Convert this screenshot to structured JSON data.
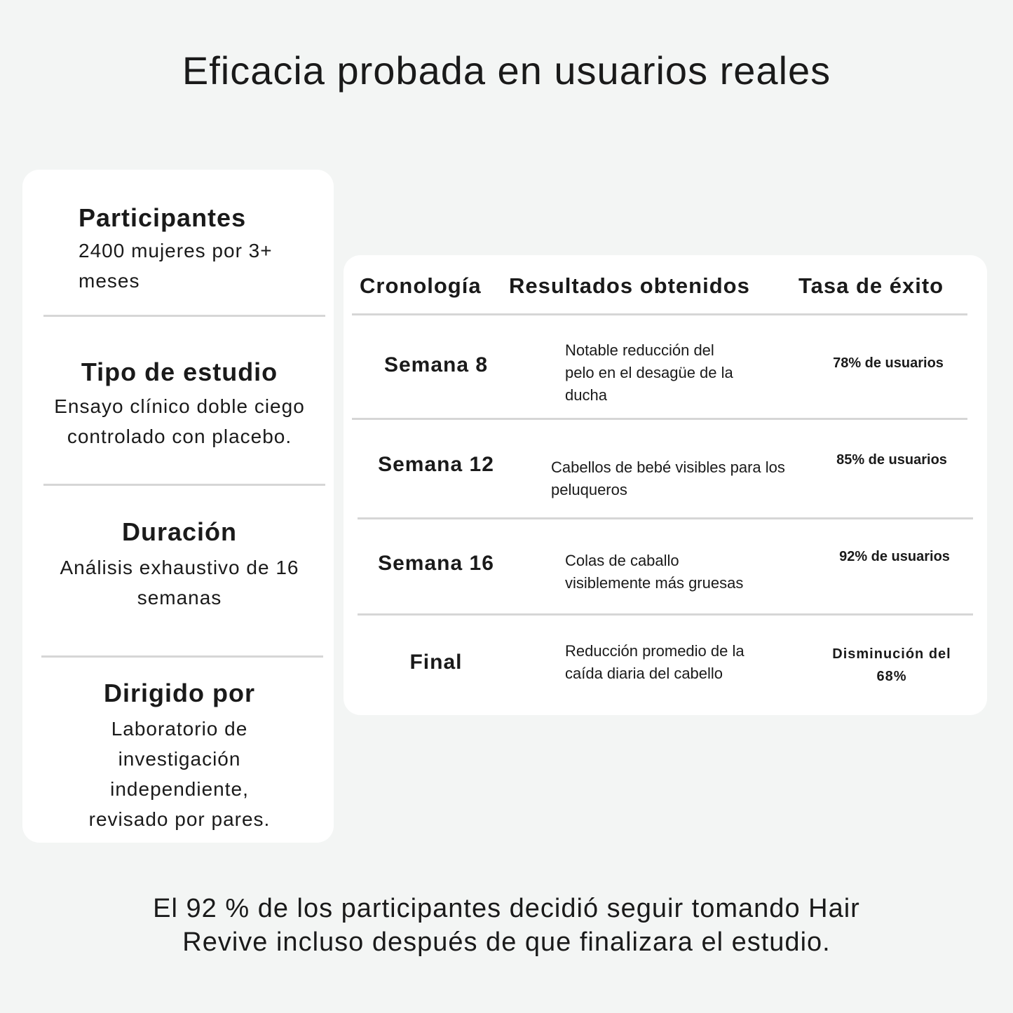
{
  "title": "Eficacia probada en usuarios reales",
  "study": [
    {
      "heading": "Participantes",
      "text": "2400 mujeres por 3+ meses"
    },
    {
      "heading": "Tipo de estudio",
      "text": "Ensayo clínico doble ciego controlado con placebo."
    },
    {
      "heading": "Duración",
      "text": "Análisis exhaustivo de 16 semanas"
    },
    {
      "heading": "Dirigido por",
      "text": "Laboratorio de investigación independiente, revisado por pares."
    }
  ],
  "table": {
    "headers": [
      "Cronología",
      "Resultados obtenidos",
      "Tasa de éxito"
    ],
    "rows": [
      {
        "time": "Semana 8",
        "result": "Notable reducción del pelo en el desagüe de la ducha",
        "rate": "78% de usuarios"
      },
      {
        "time": "Semana 12",
        "result": "Cabellos de bebé visibles para los peluqueros",
        "rate": "85% de usuarios"
      },
      {
        "time": "Semana 16",
        "result": "Colas de caballo visiblemente más gruesas",
        "rate": "92% de usuarios"
      },
      {
        "time": "Final",
        "result": "Reducción promedio de la caída diaria del cabello",
        "rate": "Disminución del 68%"
      }
    ]
  },
  "footer": "El 92 % de los participantes decidió seguir tomando Hair Revive incluso después de que finalizara el estudio."
}
